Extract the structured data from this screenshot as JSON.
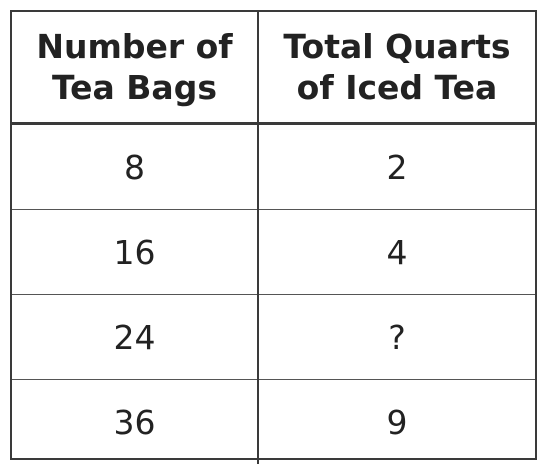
{
  "table": {
    "headers": [
      [
        "Number of",
        "Tea Bags"
      ],
      [
        "Total Quarts",
        "of Iced Tea"
      ]
    ],
    "rows": [
      [
        "8",
        "2"
      ],
      [
        "16",
        "4"
      ],
      [
        "24",
        "?"
      ],
      [
        "36",
        "9"
      ]
    ]
  }
}
